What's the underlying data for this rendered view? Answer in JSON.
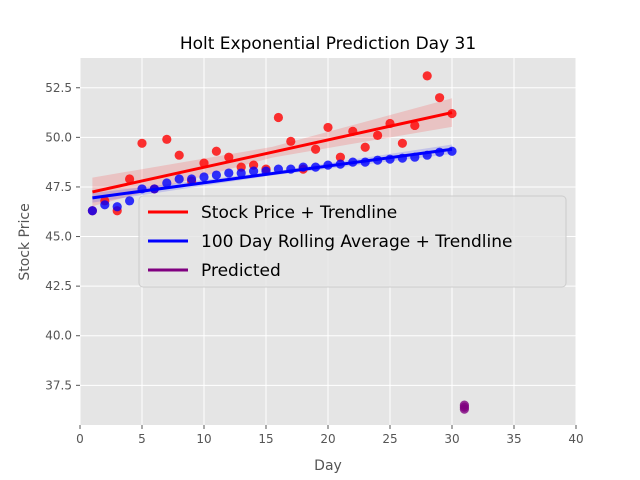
{
  "chart_data": {
    "type": "scatter",
    "title": "Holt Exponential Prediction Day 31",
    "xlabel": "Day",
    "ylabel": "Stock Price",
    "xlim": [
      0,
      40
    ],
    "ylim": [
      35.5,
      54.0
    ],
    "xticks": [
      0,
      5,
      10,
      15,
      20,
      25,
      30,
      35,
      40
    ],
    "yticks": [
      37.5,
      40.0,
      42.5,
      45.0,
      47.5,
      50.0,
      52.5
    ],
    "grid": true,
    "legend_position": "center-right",
    "series": [
      {
        "name": "Stock Price + Trendline",
        "color": "#ff0000",
        "x": [
          1,
          2,
          3,
          4,
          5,
          6,
          7,
          8,
          9,
          10,
          11,
          12,
          13,
          14,
          15,
          16,
          17,
          18,
          19,
          20,
          21,
          22,
          23,
          24,
          25,
          26,
          27,
          28,
          29,
          30
        ],
        "y": [
          46.3,
          46.8,
          46.3,
          47.9,
          49.7,
          47.4,
          49.9,
          49.1,
          47.8,
          48.7,
          49.3,
          49.0,
          48.5,
          48.6,
          48.4,
          51.0,
          49.8,
          48.4,
          49.4,
          50.5,
          49.0,
          50.3,
          49.5,
          50.1,
          50.7,
          49.7,
          50.6,
          53.1,
          52.0,
          51.2
        ],
        "trend": [
          [
            1,
            47.25
          ],
          [
            30,
            51.25
          ]
        ]
      },
      {
        "name": "100 Day Rolling Average + Trendline",
        "color": "#0000ff",
        "x": [
          1,
          2,
          3,
          4,
          5,
          6,
          7,
          8,
          9,
          10,
          11,
          12,
          13,
          14,
          15,
          16,
          17,
          18,
          19,
          20,
          21,
          22,
          23,
          24,
          25,
          26,
          27,
          28,
          29,
          30
        ],
        "y": [
          46.3,
          46.6,
          46.5,
          46.8,
          47.4,
          47.4,
          47.7,
          47.9,
          47.9,
          48.0,
          48.1,
          48.2,
          48.2,
          48.3,
          48.3,
          48.4,
          48.4,
          48.5,
          48.5,
          48.6,
          48.65,
          48.75,
          48.75,
          48.85,
          48.9,
          48.95,
          49.0,
          49.1,
          49.25,
          49.3
        ],
        "trend": [
          [
            1,
            46.95
          ],
          [
            30,
            49.4
          ]
        ]
      },
      {
        "name": "Predicted",
        "color": "#800080",
        "x": [
          31,
          31,
          31
        ],
        "y": [
          36.5,
          36.4,
          36.3
        ]
      }
    ]
  }
}
